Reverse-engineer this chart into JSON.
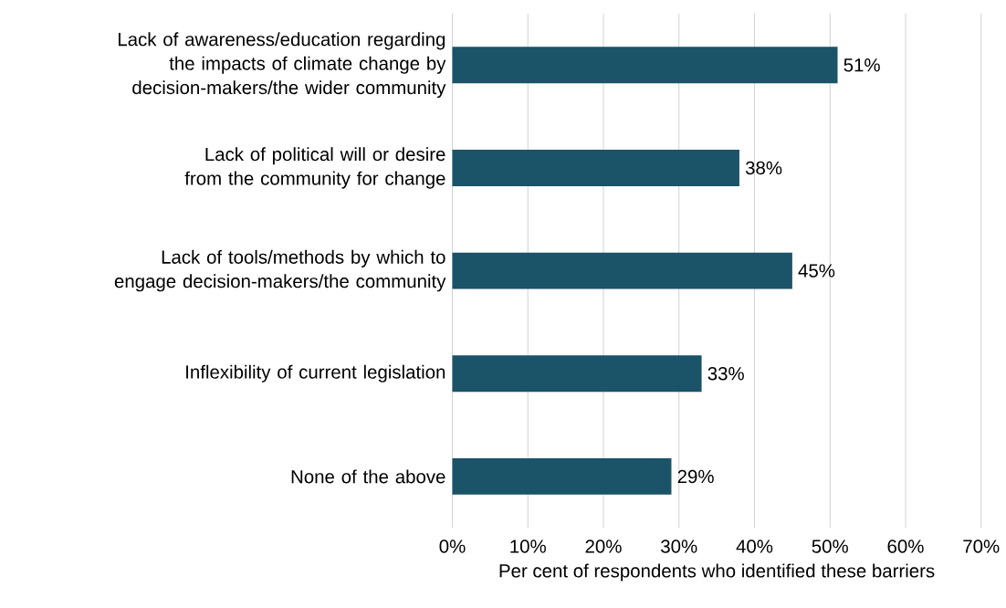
{
  "chart_data": {
    "type": "bar",
    "orientation": "horizontal",
    "categories": [
      "Lack of awareness/education regarding the impacts of climate change by decision-makers/the wider community",
      "Lack of political will or desire from the community for change",
      "Lack of tools/methods by which to engage decision-makers/the community",
      "Inflexibility of current legislation",
      "None of the above"
    ],
    "values": [
      51,
      38,
      45,
      33,
      29
    ],
    "value_labels": [
      "51%",
      "38%",
      "45%",
      "33%",
      "29%"
    ],
    "color": "#1b5368",
    "xlabel": "Per cent of respondents who identified these barriers",
    "xlim": [
      0,
      70
    ],
    "xticks": [
      {
        "value": 0,
        "label": "0%"
      },
      {
        "value": 10,
        "label": "10%"
      },
      {
        "value": 20,
        "label": "20%"
      },
      {
        "value": 30,
        "label": "30%"
      },
      {
        "value": 40,
        "label": "40%"
      },
      {
        "value": 50,
        "label": "50%"
      },
      {
        "value": 60,
        "label": "60%"
      },
      {
        "value": 70,
        "label": "70%"
      }
    ],
    "grid": "x"
  }
}
